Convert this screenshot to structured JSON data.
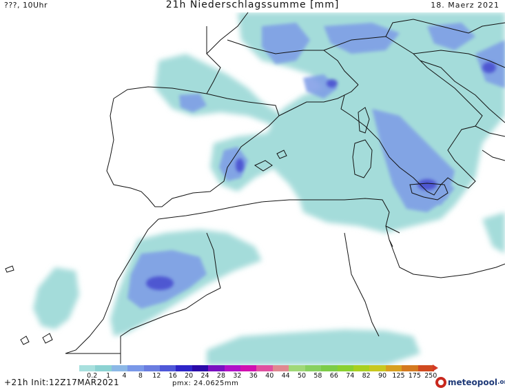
{
  "header": {
    "left": "???, 10Uhr",
    "title": "21h Niederschlagssumme [mm]",
    "date": "18. Maerz 2021"
  },
  "legend": {
    "labels": [
      "0.2",
      "1",
      "4",
      "8",
      "12",
      "16",
      "20",
      "24",
      "28",
      "32",
      "36",
      "40",
      "44",
      "50",
      "58",
      "66",
      "74",
      "82",
      "90",
      "125",
      "175",
      "250"
    ],
    "colors": [
      "#a8e0de",
      "#8cd2d2",
      "#8cb8e6",
      "#7a98e8",
      "#6a7de0",
      "#4f58d8",
      "#2e25c8",
      "#2a0aa8",
      "#7a10c0",
      "#b010c8",
      "#d010b0",
      "#e050a0",
      "#e08890",
      "#a0d878",
      "#88d060",
      "#7ccc48",
      "#8ad030",
      "#a8d020",
      "#c8c820",
      "#d8a020",
      "#d47a20",
      "#d04a20"
    ]
  },
  "footer": {
    "init": "+21h Init:12Z17MAR2021",
    "pmx": "pmx: 24.0625mm"
  },
  "logo": {
    "text": "meteopool",
    "tld": ".org"
  }
}
